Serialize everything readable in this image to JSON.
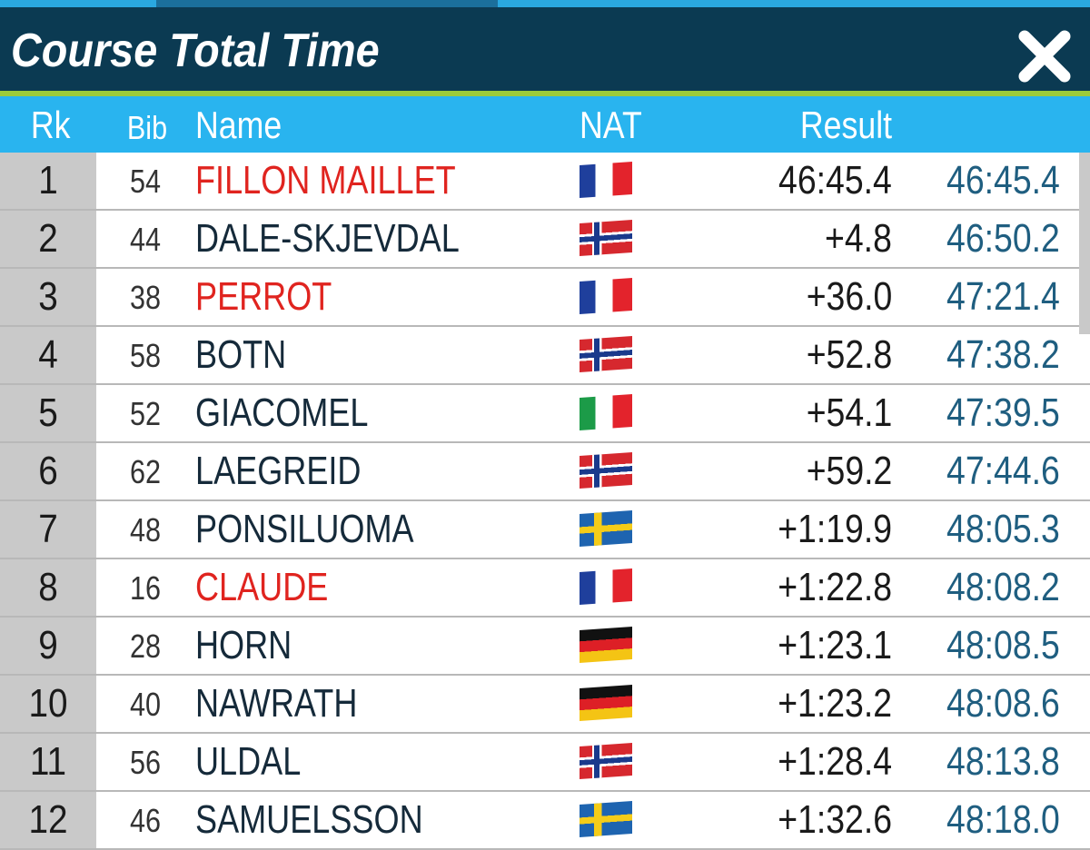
{
  "header": {
    "title": "Course Total Time"
  },
  "table": {
    "columns": [
      "Rk",
      "Bib",
      "Name",
      "NAT",
      "Result"
    ],
    "rows": [
      [
        "1",
        "54",
        "FILLON MAILLET",
        "46:45.4",
        "46:45.4"
      ],
      [
        "2",
        "44",
        "DALE-SKJEVDAL",
        "+4.8",
        "46:50.2"
      ],
      [
        "3",
        "38",
        "PERROT",
        "+36.0",
        "47:21.4"
      ],
      [
        "4",
        "58",
        "BOTN",
        "+52.8",
        "47:38.2"
      ],
      [
        "5",
        "52",
        "GIACOMEL",
        "+54.1",
        "47:39.5"
      ],
      [
        "6",
        "62",
        "LAEGREID",
        "+59.2",
        "47:44.6"
      ],
      [
        "7",
        "48",
        "PONSILUOMA",
        "+1:19.9",
        "48:05.3"
      ],
      [
        "8",
        "16",
        "CLAUDE",
        "+1:22.8",
        "48:08.2"
      ],
      [
        "9",
        "28",
        "HORN",
        "+1:23.1",
        "48:08.5"
      ],
      [
        "10",
        "40",
        "NAWRATH",
        "+1:23.2",
        "48:08.6"
      ],
      [
        "11",
        "56",
        "ULDAL",
        "+1:28.4",
        "48:13.8"
      ],
      [
        "12",
        "46",
        "SAMUELSSON",
        "+1:32.6",
        "48:18.0"
      ]
    ]
  }
}
